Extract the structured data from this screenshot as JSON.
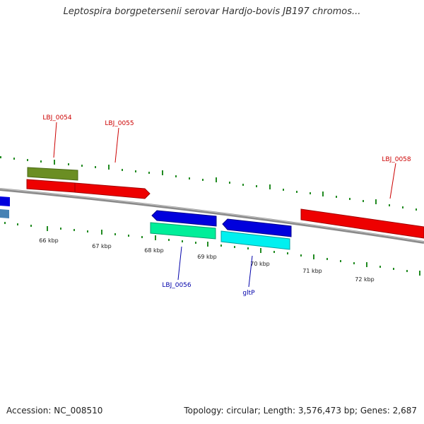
{
  "title": "Leptospira borgpetersenii serovar Hardjo-bovis JB197 chromos...",
  "footer": {
    "accession": "Accession: NC_008510",
    "topology": "Topology: circular; Length: 3,576,473 bp; Genes: 2,687"
  },
  "colors": {
    "forward_gene": "#ee0000",
    "reverse_gene": "#0000dd",
    "forward_label": "#cc0000",
    "reverse_label": "#0000aa",
    "tick": "#228b22",
    "backbone": "#8a8a8a"
  },
  "ticks": {
    "upper": [],
    "lower": [
      "66 kbp",
      "67 kbp",
      "68 kbp",
      "69 kbp",
      "70 kbp",
      "71 kbp",
      "72 kbp"
    ]
  },
  "genes": [
    {
      "label": "LBJ_0054",
      "strand": "forward"
    },
    {
      "label": "LBJ_0055",
      "strand": "forward"
    },
    {
      "label": "LBJ_0058",
      "strand": "forward"
    },
    {
      "label": "LBJ_0056",
      "strand": "reverse"
    },
    {
      "label": "gltP",
      "strand": "reverse"
    }
  ]
}
